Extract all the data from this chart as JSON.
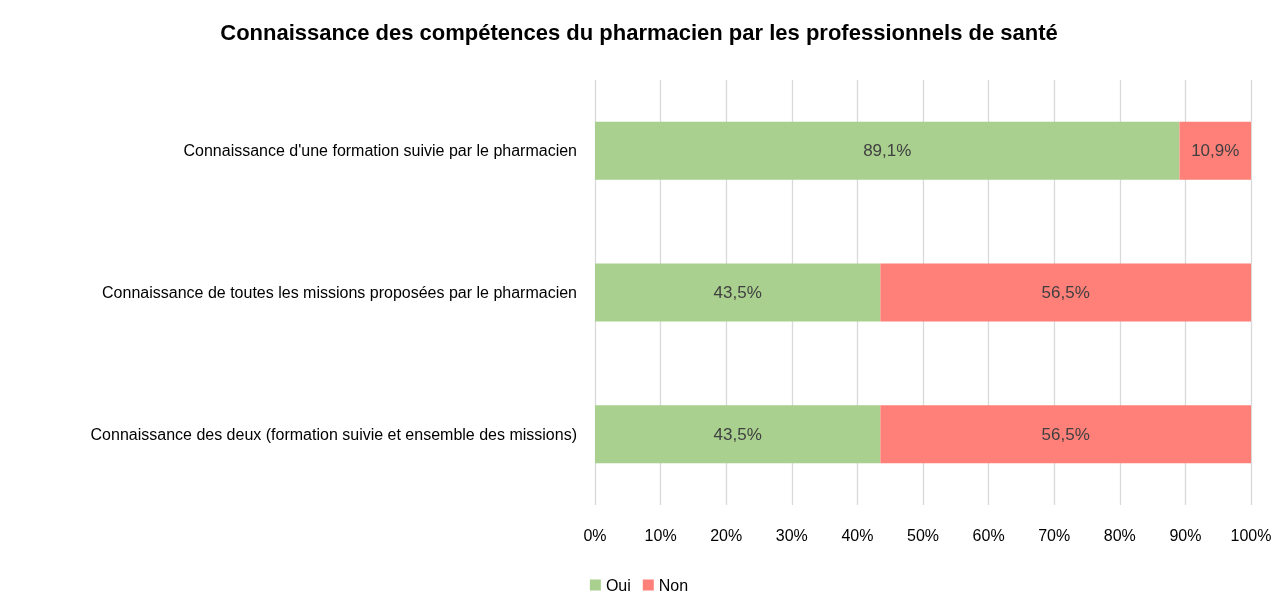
{
  "chart_data": {
    "type": "bar",
    "title": "Connaissance des compétences du pharmacien par les professionnels de santé",
    "orientation": "horizontal",
    "stacked": true,
    "categories": [
      "Connaissance d'une formation suivie par le pharmacien",
      "Connaissance de toutes les missions proposées par le pharmacien",
      "Connaissance des deux (formation suivie et ensemble des missions)"
    ],
    "series": [
      {
        "name": "Oui",
        "color": "#a9d08e",
        "values": [
          89.1,
          43.5,
          43.5
        ],
        "value_labels": [
          "89,1%",
          "43,5%",
          "43,5%"
        ]
      },
      {
        "name": "Non",
        "color": "#ff7f79",
        "values": [
          10.9,
          56.5,
          56.5
        ],
        "value_labels": [
          "10,9%",
          "56,5%",
          "56,5%"
        ]
      }
    ],
    "xlim": [
      0,
      100
    ],
    "xticks": [
      {
        "value": 0,
        "label": "0%"
      },
      {
        "value": 10,
        "label": "10%"
      },
      {
        "value": 20,
        "label": "20%"
      },
      {
        "value": 30,
        "label": "30%"
      },
      {
        "value": 40,
        "label": "40%"
      },
      {
        "value": 50,
        "label": "50%"
      },
      {
        "value": 60,
        "label": "60%"
      },
      {
        "value": 70,
        "label": "70%"
      },
      {
        "value": 80,
        "label": "80%"
      },
      {
        "value": 90,
        "label": "90%"
      },
      {
        "value": 100,
        "label": "100%"
      }
    ],
    "grid": "x",
    "legend": "bottom"
  }
}
